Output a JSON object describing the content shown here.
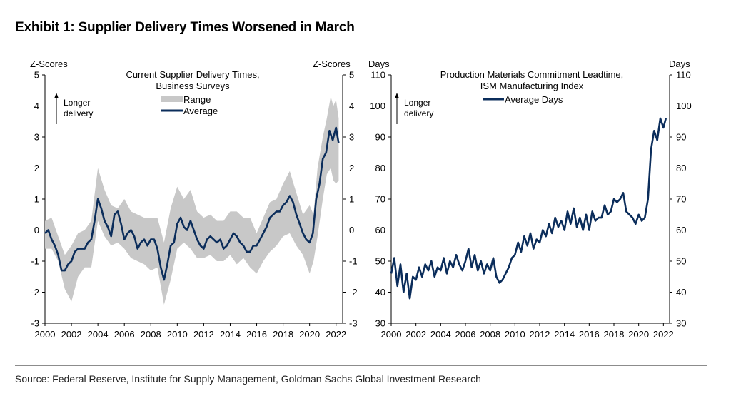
{
  "title": "Exhibit 1: Supplier Delivery Times Worsened in March",
  "source": "Source: Federal Reserve, Institute for Supply Management, Goldman Sachs Global Investment Research",
  "colors": {
    "navy": "#0b2d5b",
    "range_gray": "#c8c8c8",
    "zero_line": "#8c8c8c"
  },
  "chart_data": [
    {
      "type": "area",
      "title": "Current Supplier Delivery Times,",
      "subtitle": "Business Surveys",
      "ylabel_left": "Z-Scores",
      "ylabel_right": "Z-Scores",
      "ylim": [
        -3,
        5
      ],
      "yticks": [
        "-3",
        "-2",
        "-1",
        "0",
        "1",
        "2",
        "3",
        "4",
        "5"
      ],
      "xlim": [
        2000,
        2022.5
      ],
      "xticks": [
        "2000",
        "2002",
        "2004",
        "2006",
        "2008",
        "2010",
        "2012",
        "2014",
        "2016",
        "2018",
        "2020",
        "2022"
      ],
      "annotation": [
        "Longer",
        "delivery"
      ],
      "legend_position": "top-center",
      "series": [
        {
          "name": "Range",
          "style": "band",
          "x": [
            2000,
            2000.5,
            2001,
            2001.5,
            2002,
            2002.5,
            2003,
            2003.5,
            2004,
            2004.5,
            2005,
            2005.5,
            2006,
            2006.5,
            2007,
            2007.5,
            2008,
            2008.5,
            2009,
            2009.5,
            2010,
            2010.5,
            2011,
            2011.5,
            2012,
            2012.5,
            2013,
            2013.5,
            2014,
            2014.5,
            2015,
            2015.5,
            2016,
            2016.5,
            2017,
            2017.5,
            2018,
            2018.5,
            2019,
            2019.5,
            2020,
            2020.3,
            2020.6,
            2021,
            2021.3,
            2021.6,
            2021.8,
            2022,
            2022.2
          ],
          "lower": [
            -0.6,
            -0.6,
            -1.0,
            -1.9,
            -2.3,
            -1.5,
            -1.2,
            -1.2,
            0.3,
            -0.2,
            -0.5,
            -0.4,
            -0.6,
            -0.9,
            -1.0,
            -1.1,
            -1.3,
            -1.2,
            -2.4,
            -1.6,
            -0.6,
            -0.4,
            -0.6,
            -0.9,
            -0.9,
            -0.8,
            -1.0,
            -1.0,
            -0.8,
            -1.1,
            -0.9,
            -1.2,
            -1.4,
            -1.0,
            -0.7,
            -0.5,
            -0.2,
            -0.1,
            -0.5,
            -0.8,
            -1.4,
            -1.0,
            -0.2,
            1.0,
            1.8,
            2.0,
            1.6,
            1.5,
            1.6
          ],
          "upper": [
            0.3,
            0.4,
            -0.2,
            -0.8,
            -0.5,
            -0.1,
            0.0,
            0.3,
            2.0,
            1.3,
            0.8,
            0.7,
            1.0,
            0.6,
            0.5,
            0.4,
            0.4,
            0.4,
            -0.4,
            0.7,
            1.4,
            1.0,
            1.3,
            0.6,
            0.4,
            0.5,
            0.3,
            0.3,
            0.6,
            0.6,
            0.4,
            0.4,
            -0.1,
            0.4,
            0.9,
            1.0,
            1.5,
            1.9,
            1.2,
            0.5,
            0.8,
            0.5,
            2.0,
            3.0,
            3.6,
            4.3,
            4.0,
            4.2,
            3.6
          ]
        },
        {
          "name": "Average",
          "style": "line",
          "x": [
            2000,
            2000.25,
            2000.5,
            2000.75,
            2001,
            2001.25,
            2001.5,
            2001.75,
            2002,
            2002.25,
            2002.5,
            2002.75,
            2003,
            2003.25,
            2003.5,
            2003.75,
            2004,
            2004.25,
            2004.5,
            2004.75,
            2005,
            2005.25,
            2005.5,
            2005.75,
            2006,
            2006.25,
            2006.5,
            2006.75,
            2007,
            2007.25,
            2007.5,
            2007.75,
            2008,
            2008.25,
            2008.5,
            2008.75,
            2009,
            2009.25,
            2009.5,
            2009.75,
            2010,
            2010.25,
            2010.5,
            2010.75,
            2011,
            2011.25,
            2011.5,
            2011.75,
            2012,
            2012.25,
            2012.5,
            2012.75,
            2013,
            2013.25,
            2013.5,
            2013.75,
            2014,
            2014.25,
            2014.5,
            2014.75,
            2015,
            2015.25,
            2015.5,
            2015.75,
            2016,
            2016.25,
            2016.5,
            2016.75,
            2017,
            2017.25,
            2017.5,
            2017.75,
            2018,
            2018.25,
            2018.5,
            2018.75,
            2019,
            2019.25,
            2019.5,
            2019.75,
            2020,
            2020.25,
            2020.5,
            2020.75,
            2021,
            2021.25,
            2021.5,
            2021.75,
            2022,
            2022.2
          ],
          "y": [
            -0.1,
            0.0,
            -0.3,
            -0.5,
            -0.8,
            -1.3,
            -1.3,
            -1.1,
            -1.0,
            -0.7,
            -0.6,
            -0.6,
            -0.6,
            -0.4,
            -0.3,
            0.3,
            1.0,
            0.7,
            0.3,
            0.1,
            -0.2,
            0.5,
            0.6,
            0.2,
            -0.3,
            -0.1,
            0.0,
            -0.2,
            -0.6,
            -0.4,
            -0.3,
            -0.5,
            -0.3,
            -0.3,
            -0.6,
            -1.2,
            -1.6,
            -1.1,
            -0.5,
            -0.4,
            0.2,
            0.4,
            0.1,
            0.0,
            0.3,
            0.0,
            -0.3,
            -0.5,
            -0.6,
            -0.3,
            -0.2,
            -0.3,
            -0.4,
            -0.3,
            -0.6,
            -0.5,
            -0.3,
            -0.1,
            -0.2,
            -0.4,
            -0.5,
            -0.7,
            -0.7,
            -0.5,
            -0.5,
            -0.3,
            -0.1,
            0.1,
            0.4,
            0.5,
            0.6,
            0.6,
            0.8,
            0.9,
            1.1,
            0.9,
            0.5,
            0.2,
            -0.1,
            -0.3,
            -0.4,
            -0.1,
            1.0,
            1.5,
            2.3,
            2.5,
            3.2,
            2.9,
            3.3,
            2.8
          ]
        }
      ]
    },
    {
      "type": "line",
      "title": "Production Materials Commitment Leadtime,",
      "subtitle": "ISM Manufacturing Index",
      "ylabel_left": "Days",
      "ylabel_right": "Days",
      "ylim": [
        30,
        110
      ],
      "yticks": [
        "30",
        "40",
        "50",
        "60",
        "70",
        "80",
        "90",
        "100",
        "110"
      ],
      "xlim": [
        2000,
        2022.5
      ],
      "xticks": [
        "2000",
        "2002",
        "2004",
        "2006",
        "2008",
        "2010",
        "2012",
        "2014",
        "2016",
        "2018",
        "2020",
        "2022"
      ],
      "annotation": [
        "Longer",
        "delivery"
      ],
      "legend_position": "top-center",
      "series": [
        {
          "name": "Average Days",
          "x": [
            2000,
            2000.25,
            2000.5,
            2000.75,
            2001,
            2001.25,
            2001.5,
            2001.75,
            2002,
            2002.25,
            2002.5,
            2002.75,
            2003,
            2003.25,
            2003.5,
            2003.75,
            2004,
            2004.25,
            2004.5,
            2004.75,
            2005,
            2005.25,
            2005.5,
            2005.75,
            2006,
            2006.25,
            2006.5,
            2006.75,
            2007,
            2007.25,
            2007.5,
            2007.75,
            2008,
            2008.25,
            2008.5,
            2008.75,
            2009,
            2009.25,
            2009.5,
            2009.75,
            2010,
            2010.25,
            2010.5,
            2010.75,
            2011,
            2011.25,
            2011.5,
            2011.75,
            2012,
            2012.25,
            2012.5,
            2012.75,
            2013,
            2013.25,
            2013.5,
            2013.75,
            2014,
            2014.25,
            2014.5,
            2014.75,
            2015,
            2015.25,
            2015.5,
            2015.75,
            2016,
            2016.25,
            2016.5,
            2016.75,
            2017,
            2017.25,
            2017.5,
            2017.75,
            2018,
            2018.25,
            2018.5,
            2018.75,
            2019,
            2019.25,
            2019.5,
            2019.75,
            2020,
            2020.25,
            2020.5,
            2020.75,
            2021,
            2021.25,
            2021.5,
            2021.75,
            2022,
            2022.2
          ],
          "y": [
            46,
            51,
            42,
            49,
            40,
            46,
            38,
            45,
            44,
            48,
            45,
            49,
            47,
            50,
            45,
            48,
            47,
            51,
            46,
            50,
            48,
            52,
            49,
            47,
            50,
            54,
            48,
            52,
            47,
            50,
            46,
            49,
            47,
            51,
            45,
            43,
            44,
            46,
            48,
            51,
            52,
            56,
            53,
            58,
            55,
            59,
            54,
            57,
            56,
            60,
            58,
            62,
            59,
            64,
            61,
            63,
            60,
            66,
            62,
            67,
            61,
            64,
            60,
            65,
            60,
            66,
            63,
            64,
            64,
            68,
            65,
            66,
            70,
            69,
            70,
            72,
            66,
            65,
            64,
            62,
            65,
            63,
            64,
            70,
            86,
            92,
            89,
            96,
            93,
            96
          ]
        }
      ]
    }
  ]
}
